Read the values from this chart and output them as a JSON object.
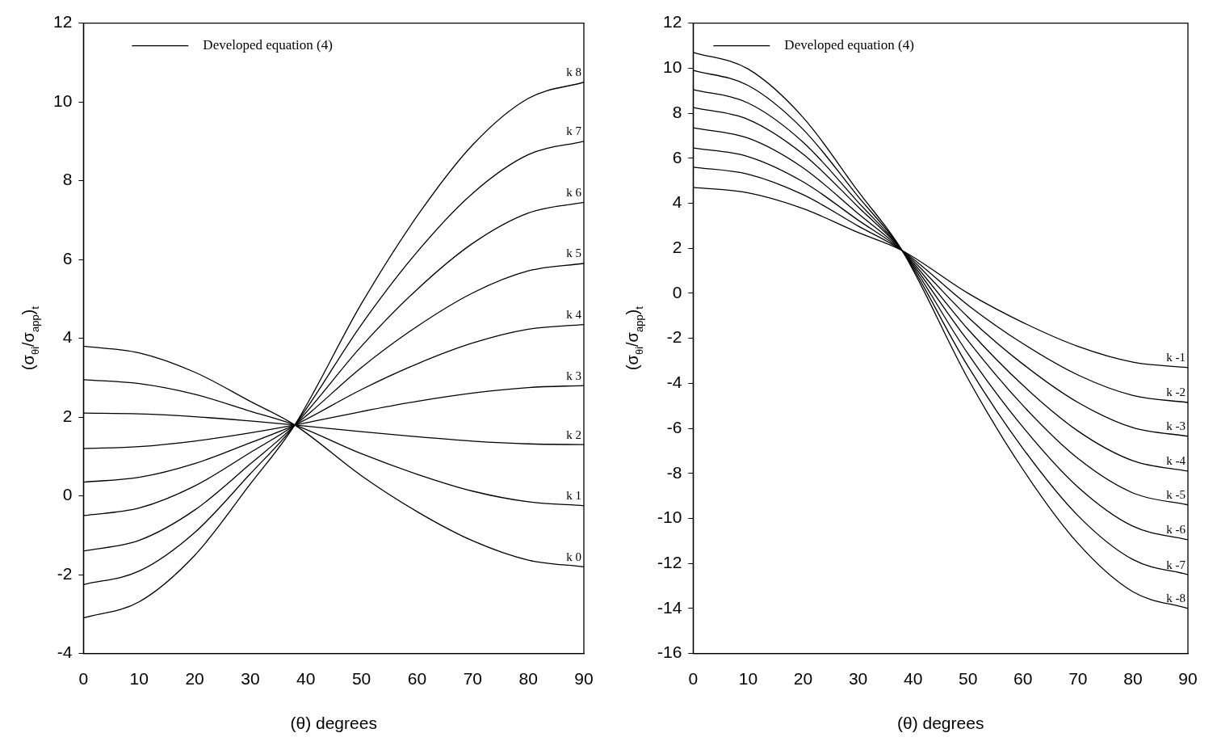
{
  "chart_data": [
    {
      "type": "line",
      "xlabel": "(θ) degrees",
      "ylabel": "(σ$_{θi}$/σ$_{app}$)$_{t}$",
      "legend_title": "Developed equation (4)",
      "x": [
        0,
        10,
        20,
        30,
        38,
        50,
        60,
        70,
        80,
        90
      ],
      "xlim": [
        0,
        90
      ],
      "xticks": [
        0,
        10,
        20,
        30,
        40,
        50,
        60,
        70,
        80,
        90
      ],
      "ylim": [
        -4,
        12
      ],
      "yticks": [
        -4,
        -2,
        0,
        2,
        4,
        6,
        8,
        10,
        12
      ],
      "grid": false,
      "marker": "none",
      "line_style": "solid",
      "series": [
        {
          "name": "k 8",
          "color": "#000000",
          "values": [
            -3.1,
            -2.69,
            -1.51,
            0.3,
            1.8,
            4.88,
            7.1,
            8.91,
            10.09,
            10.5
          ]
        },
        {
          "name": "k 7",
          "color": "#000000",
          "values": [
            -2.25,
            -1.91,
            -0.93,
            0.56,
            1.8,
            4.35,
            6.19,
            7.68,
            8.66,
            9.0
          ]
        },
        {
          "name": "k 6",
          "color": "#000000",
          "values": [
            -1.4,
            -1.13,
            -0.36,
            0.81,
            1.8,
            3.8,
            5.24,
            6.41,
            7.18,
            7.45
          ]
        },
        {
          "name": "k 5",
          "color": "#000000",
          "values": [
            -0.5,
            -0.31,
            0.25,
            1.1,
            1.8,
            3.26,
            4.3,
            5.15,
            5.71,
            5.9
          ]
        },
        {
          "name": "k 4",
          "color": "#000000",
          "values": [
            0.35,
            0.47,
            0.82,
            1.35,
            1.8,
            2.7,
            3.35,
            3.88,
            4.23,
            4.35
          ]
        },
        {
          "name": "k 3",
          "color": "#000000",
          "values": [
            1.2,
            1.25,
            1.39,
            1.6,
            1.8,
            2.14,
            2.4,
            2.61,
            2.75,
            2.8
          ]
        },
        {
          "name": "k 2",
          "color": "#000000",
          "values": [
            2.1,
            2.08,
            2.01,
            1.9,
            1.8,
            1.63,
            1.5,
            1.39,
            1.32,
            1.3
          ]
        },
        {
          "name": "k 1",
          "color": "#000000",
          "values": [
            2.95,
            2.85,
            2.58,
            2.15,
            1.8,
            1.07,
            0.55,
            0.12,
            -0.15,
            -0.25
          ]
        },
        {
          "name": "k 0",
          "color": "#000000",
          "values": [
            3.8,
            3.63,
            3.14,
            2.4,
            1.8,
            0.51,
            -0.4,
            -1.14,
            -1.63,
            -1.8
          ]
        }
      ]
    },
    {
      "type": "line",
      "xlabel": "(θ) degrees",
      "ylabel": "(σ$_{θi}$/σ$_{app}$)$_{t}$",
      "legend_title": "Developed equation (4)",
      "x": [
        0,
        10,
        20,
        30,
        38,
        50,
        60,
        70,
        80,
        90
      ],
      "xlim": [
        0,
        90
      ],
      "xticks": [
        0,
        10,
        20,
        30,
        40,
        50,
        60,
        70,
        80,
        90
      ],
      "ylim": [
        -16,
        12
      ],
      "yticks": [
        -16,
        -14,
        -12,
        -10,
        -8,
        -6,
        -4,
        -2,
        0,
        2,
        4,
        6,
        8,
        10,
        12
      ],
      "grid": false,
      "marker": "none",
      "line_style": "solid",
      "series": [
        {
          "name": "k -1",
          "color": "#000000",
          "values": [
            4.7,
            4.46,
            3.76,
            2.7,
            1.9,
            0.0,
            -1.3,
            -2.36,
            -3.06,
            -3.3
          ]
        },
        {
          "name": "k -2",
          "color": "#000000",
          "values": [
            5.6,
            5.29,
            4.38,
            2.99,
            1.9,
            -0.53,
            -2.24,
            -3.63,
            -4.54,
            -4.85
          ]
        },
        {
          "name": "k -3",
          "color": "#000000",
          "values": [
            6.45,
            6.07,
            4.95,
            3.25,
            1.9,
            -1.06,
            -3.15,
            -4.85,
            -5.97,
            -6.35
          ]
        },
        {
          "name": "k -4",
          "color": "#000000",
          "values": [
            7.35,
            6.89,
            5.57,
            3.54,
            1.9,
            -1.6,
            -4.09,
            -6.12,
            -7.44,
            -7.9
          ]
        },
        {
          "name": "k -5",
          "color": "#000000",
          "values": [
            8.25,
            7.72,
            6.18,
            3.84,
            1.9,
            -2.11,
            -4.99,
            -7.34,
            -8.87,
            -9.4
          ]
        },
        {
          "name": "k -6",
          "color": "#000000",
          "values": [
            9.05,
            8.45,
            6.71,
            4.05,
            1.9,
            -2.69,
            -5.95,
            -8.61,
            -10.35,
            -10.95
          ]
        },
        {
          "name": "k -7",
          "color": "#000000",
          "values": [
            9.9,
            9.23,
            7.28,
            4.3,
            1.9,
            -3.25,
            -6.9,
            -9.88,
            -11.83,
            -12.5
          ]
        },
        {
          "name": "k -8",
          "color": "#000000",
          "values": [
            10.7,
            9.96,
            7.81,
            4.53,
            1.9,
            -3.8,
            -7.83,
            -11.11,
            -13.26,
            -14.0
          ]
        }
      ]
    }
  ]
}
